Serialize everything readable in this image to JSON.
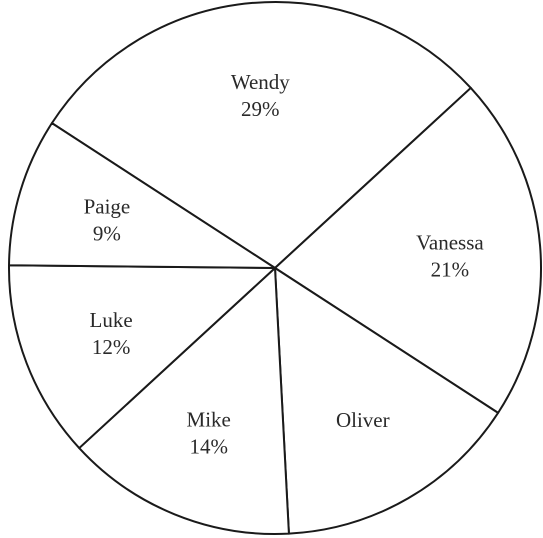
{
  "chart_data": {
    "type": "pie",
    "title": "",
    "slices": [
      {
        "label": "Wendy",
        "value": 29,
        "value_label": "29%"
      },
      {
        "label": "Vanessa",
        "value": 21,
        "value_label": "21%"
      },
      {
        "label": "Oliver",
        "value": 15,
        "value_label": ""
      },
      {
        "label": "Mike",
        "value": 14,
        "value_label": "14%"
      },
      {
        "label": "Luke",
        "value": 12,
        "value_label": "12%"
      },
      {
        "label": "Paige",
        "value": 9,
        "value_label": "9%"
      }
    ],
    "start_angle_deg": 303,
    "direction": "clockwise",
    "fill": "#ffffff",
    "stroke": "#1a1a1a"
  }
}
